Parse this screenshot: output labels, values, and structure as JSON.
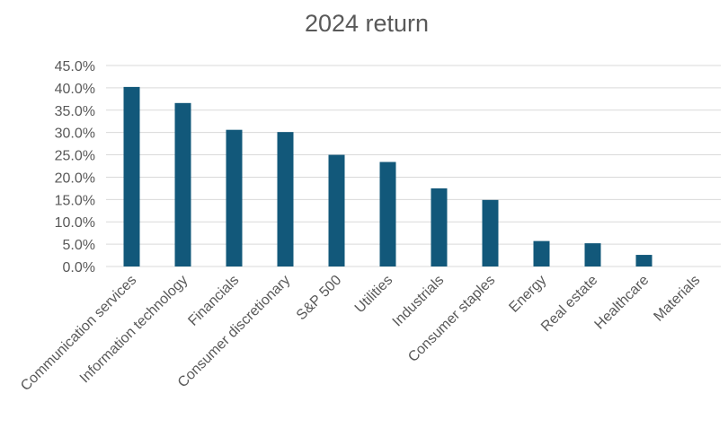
{
  "chart_data": {
    "type": "bar",
    "title": "2024 return",
    "categories": [
      "Communication services",
      "Information technology",
      "Financials",
      "Consumer discretionary",
      "S&P 500",
      "Utilities",
      "Industrials",
      "Consumer staples",
      "Energy",
      "Real estate",
      "Healthcare",
      "Materials"
    ],
    "values": [
      40.2,
      36.6,
      30.6,
      30.1,
      25.0,
      23.4,
      17.5,
      14.9,
      5.7,
      5.2,
      2.6,
      0.0
    ],
    "ylim": [
      0,
      45
    ],
    "yticks": [
      0,
      5,
      10,
      15,
      20,
      25,
      30,
      35,
      40,
      45
    ],
    "ytick_labels": [
      "0.0%",
      "5.0%",
      "10.0%",
      "15.0%",
      "20.0%",
      "25.0%",
      "30.0%",
      "35.0%",
      "40.0%",
      "45.0%"
    ],
    "xlabel": "",
    "ylabel": "",
    "grid": true,
    "legend": "none",
    "bar_color": "#12587a"
  }
}
